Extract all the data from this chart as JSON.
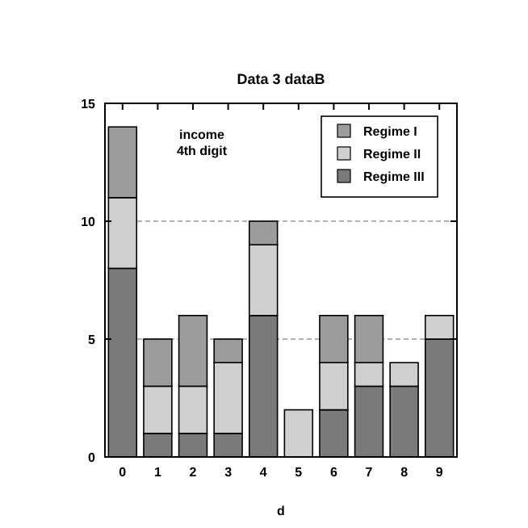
{
  "chart_data": {
    "type": "bar",
    "title": "Data 3 dataB",
    "xlabel": "d",
    "categories": [
      "0",
      "1",
      "2",
      "3",
      "4",
      "5",
      "6",
      "7",
      "8",
      "9"
    ],
    "stacked": true,
    "series": [
      {
        "name": "Regime III",
        "color": "#7a7a7a",
        "values": [
          8,
          1,
          1,
          1,
          6,
          0,
          2,
          3,
          3,
          5
        ]
      },
      {
        "name": "Regime II",
        "color": "#cfcfcf",
        "values": [
          3,
          2,
          2,
          3,
          3,
          2,
          2,
          1,
          1,
          1
        ]
      },
      {
        "name": "Regime I",
        "color": "#9c9c9c",
        "values": [
          3,
          2,
          3,
          1,
          1,
          0,
          2,
          2,
          0,
          0
        ]
      }
    ],
    "ylim": [
      0,
      15
    ],
    "yticks": [
      0,
      5,
      10,
      15
    ],
    "grid": "y",
    "legend": "top right",
    "annotations": [
      "income\n4th digit"
    ]
  }
}
